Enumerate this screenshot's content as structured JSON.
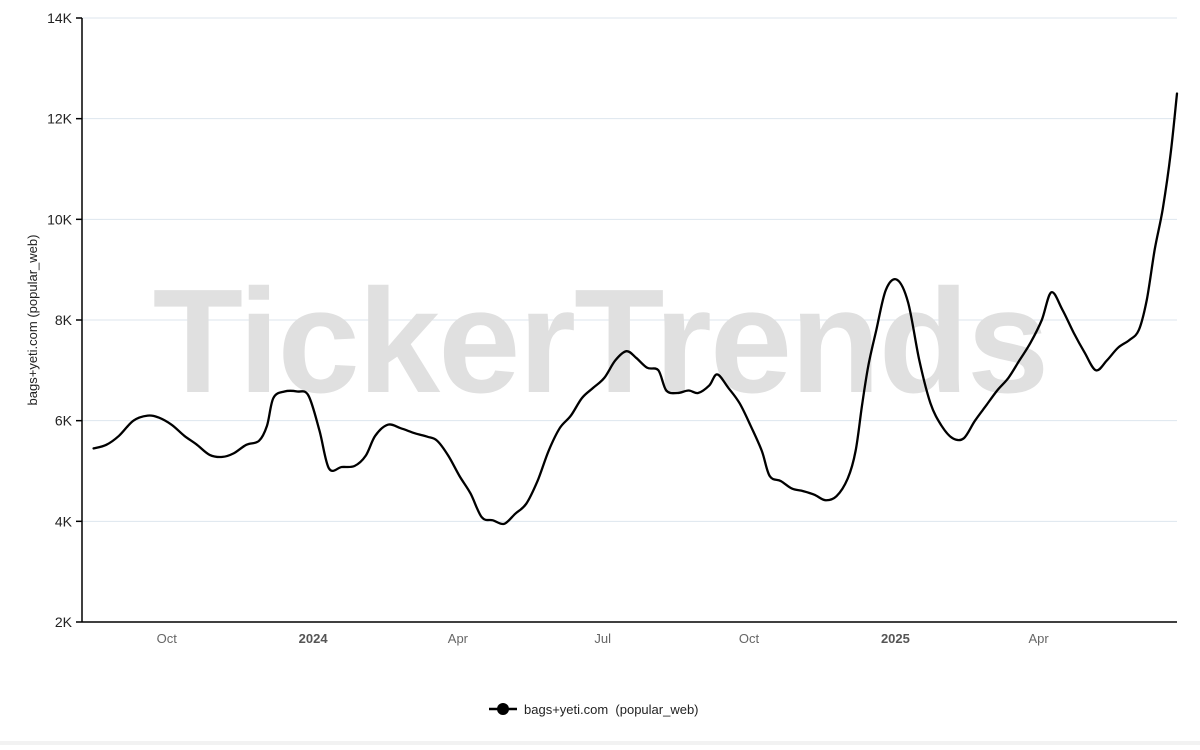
{
  "watermark": "TickerTrends",
  "chart_data": {
    "type": "line",
    "title": "",
    "xlabel": "",
    "ylabel": "bags+yeti.com  (popular_web)",
    "ylim": [
      2000,
      14000
    ],
    "y_ticks": [
      {
        "value": 2000,
        "label": "2K"
      },
      {
        "value": 4000,
        "label": "4K"
      },
      {
        "value": 6000,
        "label": "6K"
      },
      {
        "value": 8000,
        "label": "8K"
      },
      {
        "value": 10000,
        "label": "10K"
      },
      {
        "value": 12000,
        "label": "12K"
      },
      {
        "value": 14000,
        "label": "14K"
      }
    ],
    "x_range": [
      "2023-08-15",
      "2025-06-27"
    ],
    "x_ticks": [
      {
        "date": "2023-10-01",
        "label": "Oct",
        "major": false
      },
      {
        "date": "2024-01-01",
        "label": "2024",
        "major": true
      },
      {
        "date": "2024-04-01",
        "label": "Apr",
        "major": false
      },
      {
        "date": "2024-07-01",
        "label": "Jul",
        "major": false
      },
      {
        "date": "2024-10-01",
        "label": "Oct",
        "major": false
      },
      {
        "date": "2025-01-01",
        "label": "2025",
        "major": true
      },
      {
        "date": "2025-04-01",
        "label": "Apr",
        "major": false
      }
    ],
    "grid": true,
    "legend_position": "bottom-center",
    "series": [
      {
        "name": "bags+yeti.com  (popular_web)",
        "color": "#000000",
        "points": [
          [
            "2023-08-16",
            5450
          ],
          [
            "2023-08-24",
            5520
          ],
          [
            "2023-09-01",
            5700
          ],
          [
            "2023-09-10",
            6000
          ],
          [
            "2023-09-19",
            6100
          ],
          [
            "2023-09-26",
            6060
          ],
          [
            "2023-10-04",
            5920
          ],
          [
            "2023-10-12",
            5700
          ],
          [
            "2023-10-20",
            5520
          ],
          [
            "2023-10-28",
            5320
          ],
          [
            "2023-11-05",
            5280
          ],
          [
            "2023-11-12",
            5350
          ],
          [
            "2023-11-20",
            5520
          ],
          [
            "2023-11-28",
            5600
          ],
          [
            "2023-12-03",
            5900
          ],
          [
            "2023-12-07",
            6450
          ],
          [
            "2023-12-14",
            6580
          ],
          [
            "2023-12-22",
            6580
          ],
          [
            "2023-12-29",
            6500
          ],
          [
            "2024-01-05",
            5800
          ],
          [
            "2024-01-11",
            5050
          ],
          [
            "2024-01-19",
            5080
          ],
          [
            "2024-01-27",
            5100
          ],
          [
            "2024-02-03",
            5300
          ],
          [
            "2024-02-09",
            5700
          ],
          [
            "2024-02-17",
            5920
          ],
          [
            "2024-02-25",
            5850
          ],
          [
            "2024-03-05",
            5750
          ],
          [
            "2024-03-13",
            5680
          ],
          [
            "2024-03-19",
            5600
          ],
          [
            "2024-03-26",
            5300
          ],
          [
            "2024-04-02",
            4900
          ],
          [
            "2024-04-09",
            4550
          ],
          [
            "2024-04-16",
            4080
          ],
          [
            "2024-04-23",
            4020
          ],
          [
            "2024-04-30",
            3950
          ],
          [
            "2024-05-07",
            4150
          ],
          [
            "2024-05-14",
            4350
          ],
          [
            "2024-05-21",
            4800
          ],
          [
            "2024-05-28",
            5400
          ],
          [
            "2024-06-04",
            5850
          ],
          [
            "2024-06-11",
            6100
          ],
          [
            "2024-06-18",
            6450
          ],
          [
            "2024-06-25",
            6650
          ],
          [
            "2024-07-02",
            6850
          ],
          [
            "2024-07-09",
            7200
          ],
          [
            "2024-07-16",
            7380
          ],
          [
            "2024-07-22",
            7250
          ],
          [
            "2024-07-29",
            7050
          ],
          [
            "2024-08-05",
            7000
          ],
          [
            "2024-08-10",
            6600
          ],
          [
            "2024-08-17",
            6550
          ],
          [
            "2024-08-24",
            6600
          ],
          [
            "2024-08-30",
            6550
          ],
          [
            "2024-09-06",
            6700
          ],
          [
            "2024-09-11",
            6920
          ],
          [
            "2024-09-18",
            6650
          ],
          [
            "2024-09-25",
            6350
          ],
          [
            "2024-10-02",
            5900
          ],
          [
            "2024-10-09",
            5400
          ],
          [
            "2024-10-14",
            4900
          ],
          [
            "2024-10-21",
            4800
          ],
          [
            "2024-10-28",
            4650
          ],
          [
            "2024-11-04",
            4600
          ],
          [
            "2024-11-11",
            4530
          ],
          [
            "2024-11-18",
            4420
          ],
          [
            "2024-11-25",
            4500
          ],
          [
            "2024-12-02",
            4850
          ],
          [
            "2024-12-07",
            5400
          ],
          [
            "2024-12-11",
            6300
          ],
          [
            "2024-12-15",
            7100
          ],
          [
            "2024-12-20",
            7800
          ],
          [
            "2024-12-26",
            8600
          ],
          [
            "2025-01-02",
            8800
          ],
          [
            "2025-01-09",
            8350
          ],
          [
            "2025-01-16",
            7200
          ],
          [
            "2025-01-23",
            6350
          ],
          [
            "2025-01-30",
            5900
          ],
          [
            "2025-02-06",
            5650
          ],
          [
            "2025-02-13",
            5650
          ],
          [
            "2025-02-20",
            6000
          ],
          [
            "2025-02-27",
            6300
          ],
          [
            "2025-03-06",
            6600
          ],
          [
            "2025-03-13",
            6850
          ],
          [
            "2025-03-20",
            7200
          ],
          [
            "2025-03-27",
            7550
          ],
          [
            "2025-04-03",
            8000
          ],
          [
            "2025-04-09",
            8550
          ],
          [
            "2025-04-16",
            8200
          ],
          [
            "2025-04-23",
            7750
          ],
          [
            "2025-04-30",
            7350
          ],
          [
            "2025-05-07",
            7000
          ],
          [
            "2025-05-14",
            7200
          ],
          [
            "2025-05-21",
            7450
          ],
          [
            "2025-05-28",
            7600
          ],
          [
            "2025-06-03",
            7800
          ],
          [
            "2025-06-08",
            8400
          ],
          [
            "2025-06-13",
            9400
          ],
          [
            "2025-06-18",
            10200
          ],
          [
            "2025-06-23",
            11300
          ],
          [
            "2025-06-27",
            12500
          ]
        ]
      }
    ]
  }
}
